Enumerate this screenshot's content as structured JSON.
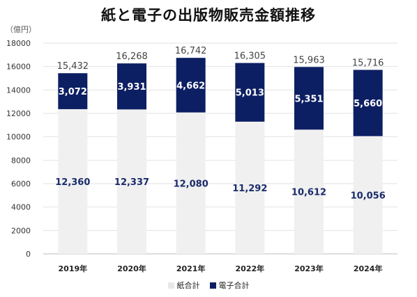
{
  "title": "紙と電子の出版物販売金額推移",
  "unit_label": "（億円）",
  "colors": {
    "paper": "#f0f0f0",
    "digital": "#0d1f63",
    "grid": "#e2e2e2"
  },
  "legend": [
    {
      "label": "紙合計",
      "series": "paper"
    },
    {
      "label": "電子合計",
      "series": "digital"
    }
  ],
  "chart_data": {
    "type": "bar",
    "stacked": true,
    "categories": [
      "2019年",
      "2020年",
      "2021年",
      "2022年",
      "2023年",
      "2024年"
    ],
    "series": [
      {
        "name": "紙合計",
        "values": [
          12360,
          12337,
          12080,
          11292,
          10612,
          10056
        ]
      },
      {
        "name": "電子合計",
        "values": [
          3072,
          3931,
          4662,
          5013,
          5351,
          5660
        ]
      }
    ],
    "totals": [
      15432,
      16268,
      16742,
      16305,
      15963,
      15716
    ],
    "title": "紙と電子の出版物販売金額推移",
    "ylabel": "（億円）",
    "ylim": [
      0,
      18000
    ],
    "yticks": [
      0,
      2000,
      4000,
      6000,
      8000,
      10000,
      12000,
      14000,
      16000,
      18000
    ],
    "grid": true,
    "legend_position": "bottom"
  }
}
